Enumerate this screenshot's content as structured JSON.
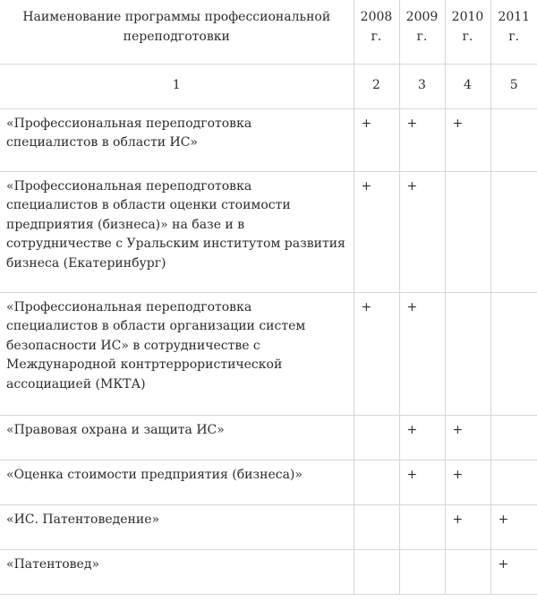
{
  "table": {
    "headers": [
      "Наименование программы профессиональной переподготовки",
      "2008 г.",
      "2009 г.",
      "2010 г.",
      "2011 г."
    ],
    "column_numbers": [
      "1",
      "2",
      "3",
      "4",
      "5"
    ],
    "rows": [
      {
        "name": "«Профессиональная переподготовка специалистов в области ИС»",
        "marks": [
          "+",
          "+",
          "+",
          ""
        ]
      },
      {
        "name": "«Профессиональная переподготовка специалистов в области оценки стоимости предприятия (бизнеса)» на базе и в сотрудничестве с Уральским институтом развития бизнеса (Екатеринбург)",
        "marks": [
          "+",
          "+",
          "",
          ""
        ]
      },
      {
        "name": "«Профессиональная переподготовка специалистов в области организации систем безопасности ИС» в сотрудничестве с Международной контртеррористической ассоциацией (МКТА)",
        "marks": [
          "+",
          "+",
          "",
          ""
        ]
      },
      {
        "name": "«Правовая охрана и защита ИС»",
        "marks": [
          "",
          "+",
          "+",
          ""
        ]
      },
      {
        "name": "«Оценка стоимости предприятия (бизнеса)»",
        "marks": [
          "",
          "+",
          "+",
          ""
        ]
      },
      {
        "name": "«ИС. Патентоведение»",
        "marks": [
          "",
          "",
          "+",
          "+"
        ]
      },
      {
        "name": "«Патентовед»",
        "marks": [
          "",
          "",
          "",
          "+"
        ]
      }
    ]
  }
}
